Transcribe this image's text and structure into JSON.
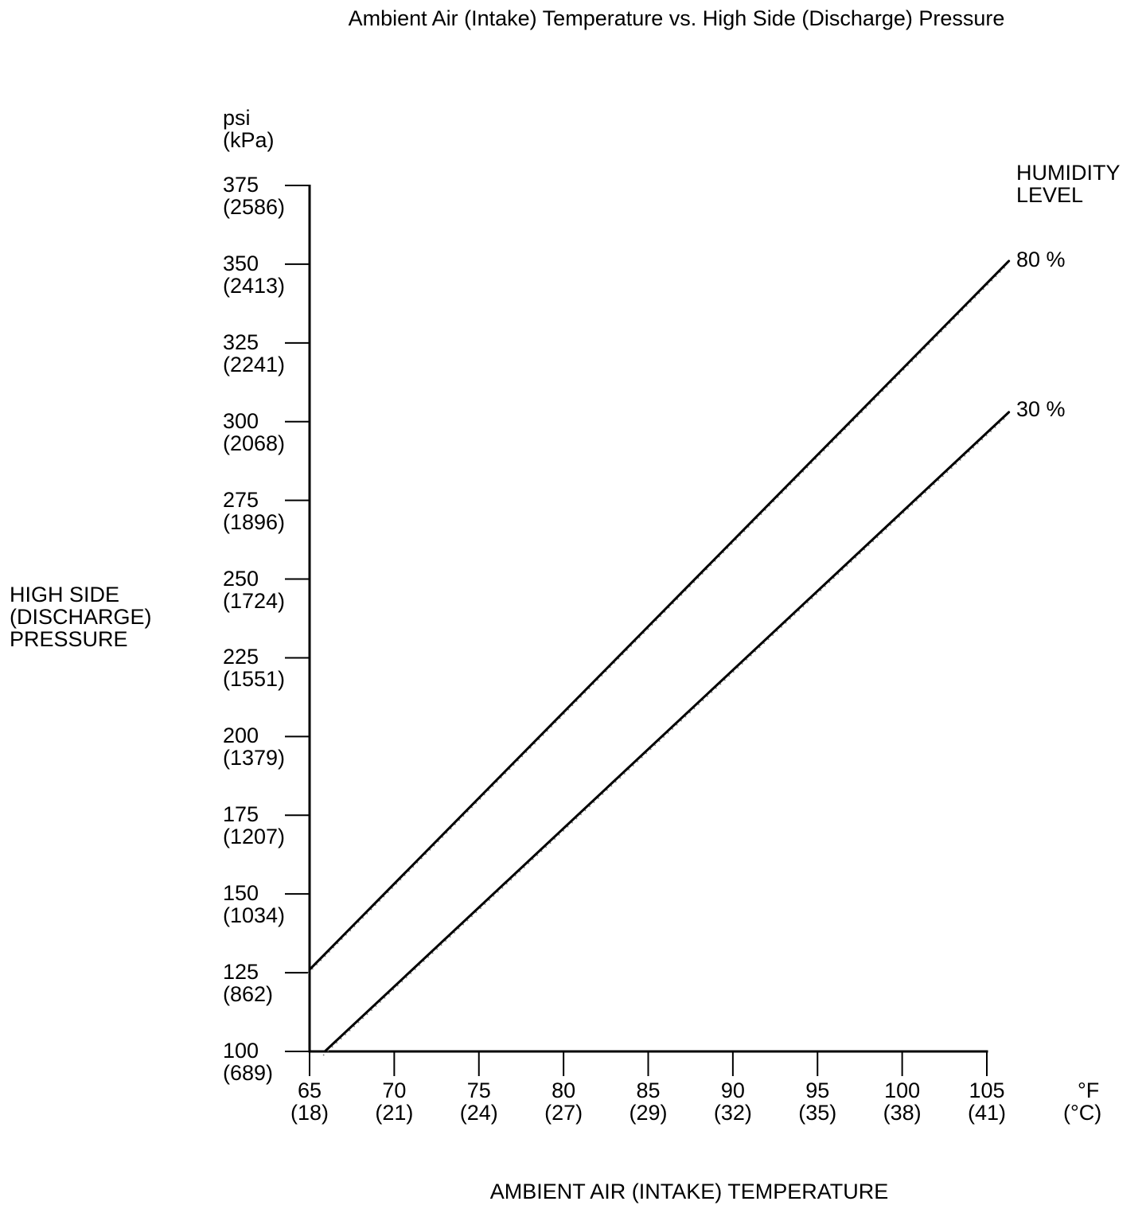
{
  "title": "Ambient Air (Intake) Temperature vs. High Side (Discharge) Pressure",
  "chart_data": {
    "type": "line",
    "title": "Ambient Air (Intake) Temperature vs. High Side (Discharge) Pressure",
    "grid": "off",
    "x_axis": {
      "title": "AMBIENT AIR (INTAKE) TEMPERATURE",
      "unit_line1": "°F",
      "unit_line2": "(°C)",
      "min_f": 65,
      "max_f": 105,
      "ticks": [
        {
          "f": "65",
          "c": "(18)"
        },
        {
          "f": "70",
          "c": "(21)"
        },
        {
          "f": "75",
          "c": "(24)"
        },
        {
          "f": "80",
          "c": "(27)"
        },
        {
          "f": "85",
          "c": "(29)"
        },
        {
          "f": "90",
          "c": "(32)"
        },
        {
          "f": "95",
          "c": "(35)"
        },
        {
          "f": "100",
          "c": "(38)"
        },
        {
          "f": "105",
          "c": "(41)"
        }
      ]
    },
    "y_axis": {
      "title": "HIGH SIDE\n(DISCHARGE)\nPRESSURE",
      "unit_line1": "psi",
      "unit_line2": "(kPa)",
      "min_psi": 100,
      "max_psi": 375,
      "ticks": [
        {
          "psi": "375",
          "kpa": "(2586)"
        },
        {
          "psi": "350",
          "kpa": "(2413)"
        },
        {
          "psi": "325",
          "kpa": "(2241)"
        },
        {
          "psi": "300",
          "kpa": "(2068)"
        },
        {
          "psi": "275",
          "kpa": "(1896)"
        },
        {
          "psi": "250",
          "kpa": "(1724)"
        },
        {
          "psi": "225",
          "kpa": "(1551)"
        },
        {
          "psi": "200",
          "kpa": "(1379)"
        },
        {
          "psi": "175",
          "kpa": "(1207)"
        },
        {
          "psi": "150",
          "kpa": "(1034)"
        },
        {
          "psi": "125",
          "kpa": "(862)"
        },
        {
          "psi": "100",
          "kpa": "(689)"
        }
      ]
    },
    "legend": {
      "title": "HUMIDITY\nLEVEL",
      "position": "top-right"
    },
    "series": [
      {
        "name": "80 %",
        "humidity_pct": 80,
        "points_f_psi": [
          [
            65,
            126
          ],
          [
            106.3,
            351
          ]
        ]
      },
      {
        "name": "30 %",
        "humidity_pct": 30,
        "points_f_psi": [
          [
            65.9,
            100
          ],
          [
            106.3,
            303
          ]
        ]
      }
    ],
    "colors": {
      "line": "#000000",
      "text": "#000000",
      "background": "#ffffff"
    }
  }
}
